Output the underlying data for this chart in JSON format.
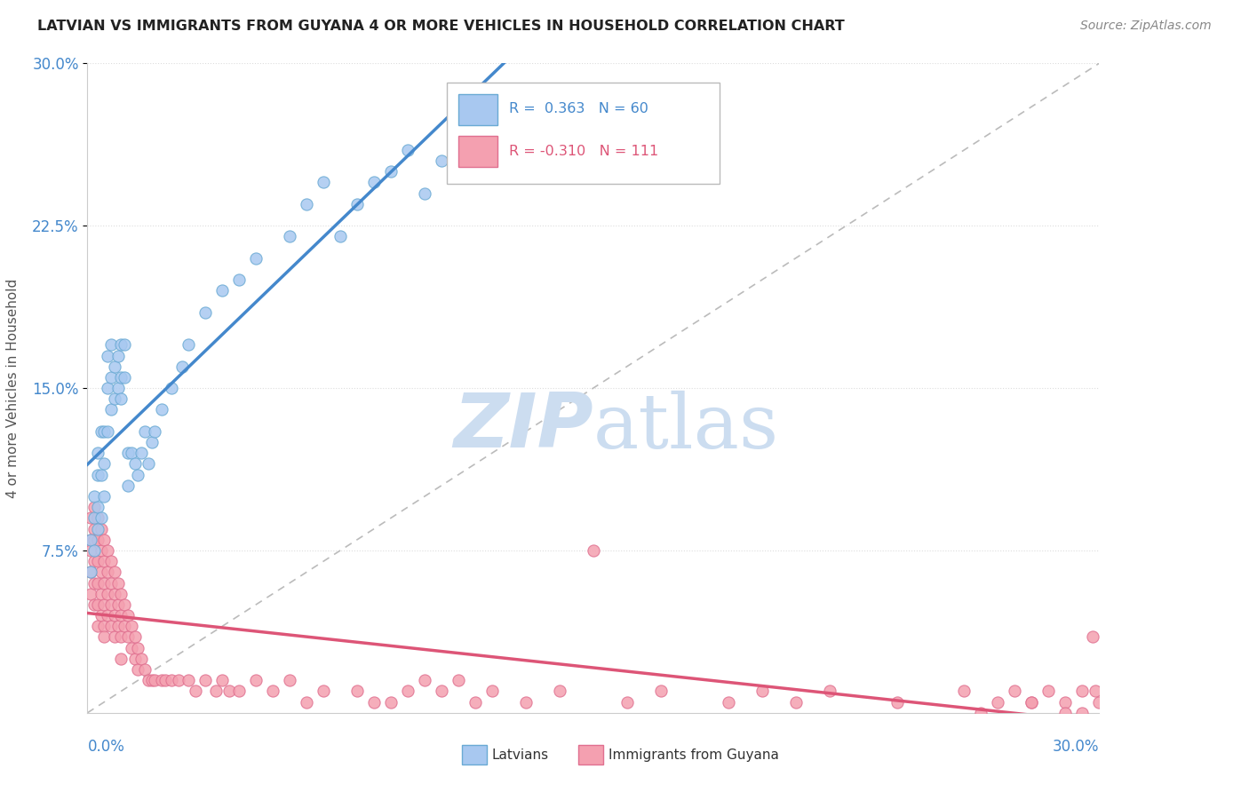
{
  "title": "LATVIAN VS IMMIGRANTS FROM GUYANA 4 OR MORE VEHICLES IN HOUSEHOLD CORRELATION CHART",
  "source": "Source: ZipAtlas.com",
  "ylabel_label": "4 or more Vehicles in Household",
  "blue_r": 0.363,
  "blue_n": 60,
  "pink_r": -0.31,
  "pink_n": 111,
  "blue_scatter_color": "#a8c8f0",
  "blue_scatter_edge": "#6aaad4",
  "pink_scatter_color": "#f4a0b0",
  "pink_scatter_edge": "#e07090",
  "blue_line_color": "#4488cc",
  "pink_line_color": "#dd5577",
  "ref_line_color": "#bbbbbb",
  "watermark_color": "#ccddf0",
  "background_color": "#ffffff",
  "xlim": [
    0.0,
    0.3
  ],
  "ylim": [
    0.0,
    0.3
  ],
  "tick_color": "#4488cc",
  "blue_x": [
    0.001,
    0.001,
    0.002,
    0.002,
    0.002,
    0.003,
    0.003,
    0.003,
    0.003,
    0.004,
    0.004,
    0.004,
    0.005,
    0.005,
    0.005,
    0.006,
    0.006,
    0.006,
    0.007,
    0.007,
    0.007,
    0.008,
    0.008,
    0.009,
    0.009,
    0.01,
    0.01,
    0.01,
    0.011,
    0.011,
    0.012,
    0.012,
    0.013,
    0.014,
    0.015,
    0.016,
    0.017,
    0.018,
    0.019,
    0.02,
    0.022,
    0.025,
    0.028,
    0.03,
    0.035,
    0.04,
    0.045,
    0.05,
    0.06,
    0.065,
    0.07,
    0.075,
    0.08,
    0.085,
    0.09,
    0.095,
    0.1,
    0.105,
    0.11,
    0.115
  ],
  "blue_y": [
    0.065,
    0.08,
    0.075,
    0.09,
    0.1,
    0.085,
    0.095,
    0.11,
    0.12,
    0.09,
    0.11,
    0.13,
    0.1,
    0.115,
    0.13,
    0.13,
    0.15,
    0.165,
    0.14,
    0.155,
    0.17,
    0.145,
    0.16,
    0.15,
    0.165,
    0.145,
    0.155,
    0.17,
    0.155,
    0.17,
    0.105,
    0.12,
    0.12,
    0.115,
    0.11,
    0.12,
    0.13,
    0.115,
    0.125,
    0.13,
    0.14,
    0.15,
    0.16,
    0.17,
    0.185,
    0.195,
    0.2,
    0.21,
    0.22,
    0.235,
    0.245,
    0.22,
    0.235,
    0.245,
    0.25,
    0.26,
    0.24,
    0.255,
    0.265,
    0.275
  ],
  "pink_x": [
    0.001,
    0.001,
    0.001,
    0.001,
    0.001,
    0.002,
    0.002,
    0.002,
    0.002,
    0.002,
    0.002,
    0.003,
    0.003,
    0.003,
    0.003,
    0.003,
    0.003,
    0.004,
    0.004,
    0.004,
    0.004,
    0.004,
    0.005,
    0.005,
    0.005,
    0.005,
    0.005,
    0.005,
    0.006,
    0.006,
    0.006,
    0.006,
    0.007,
    0.007,
    0.007,
    0.007,
    0.008,
    0.008,
    0.008,
    0.008,
    0.009,
    0.009,
    0.009,
    0.01,
    0.01,
    0.01,
    0.01,
    0.011,
    0.011,
    0.012,
    0.012,
    0.013,
    0.013,
    0.014,
    0.014,
    0.015,
    0.015,
    0.016,
    0.017,
    0.018,
    0.019,
    0.02,
    0.022,
    0.023,
    0.025,
    0.027,
    0.03,
    0.032,
    0.035,
    0.038,
    0.04,
    0.042,
    0.045,
    0.05,
    0.055,
    0.06,
    0.065,
    0.07,
    0.08,
    0.085,
    0.09,
    0.095,
    0.1,
    0.105,
    0.11,
    0.115,
    0.12,
    0.13,
    0.14,
    0.15,
    0.16,
    0.17,
    0.19,
    0.2,
    0.21,
    0.22,
    0.24,
    0.26,
    0.28,
    0.29,
    0.295,
    0.298,
    0.299,
    0.3,
    0.295,
    0.29,
    0.285,
    0.28,
    0.275,
    0.27,
    0.265
  ],
  "pink_y": [
    0.08,
    0.09,
    0.075,
    0.065,
    0.055,
    0.085,
    0.095,
    0.08,
    0.07,
    0.06,
    0.05,
    0.09,
    0.08,
    0.07,
    0.06,
    0.05,
    0.04,
    0.085,
    0.075,
    0.065,
    0.055,
    0.045,
    0.08,
    0.07,
    0.06,
    0.05,
    0.04,
    0.035,
    0.075,
    0.065,
    0.055,
    0.045,
    0.07,
    0.06,
    0.05,
    0.04,
    0.065,
    0.055,
    0.045,
    0.035,
    0.06,
    0.05,
    0.04,
    0.055,
    0.045,
    0.035,
    0.025,
    0.05,
    0.04,
    0.045,
    0.035,
    0.04,
    0.03,
    0.035,
    0.025,
    0.03,
    0.02,
    0.025,
    0.02,
    0.015,
    0.015,
    0.015,
    0.015,
    0.015,
    0.015,
    0.015,
    0.015,
    0.01,
    0.015,
    0.01,
    0.015,
    0.01,
    0.01,
    0.015,
    0.01,
    0.015,
    0.005,
    0.01,
    0.01,
    0.005,
    0.005,
    0.01,
    0.015,
    0.01,
    0.015,
    0.005,
    0.01,
    0.005,
    0.01,
    0.075,
    0.005,
    0.01,
    0.005,
    0.01,
    0.005,
    0.01,
    0.005,
    0.01,
    0.005,
    0.005,
    0.01,
    0.035,
    0.01,
    0.005,
    0.0,
    0.0,
    0.01,
    0.005,
    0.01,
    0.005,
    0.0
  ]
}
